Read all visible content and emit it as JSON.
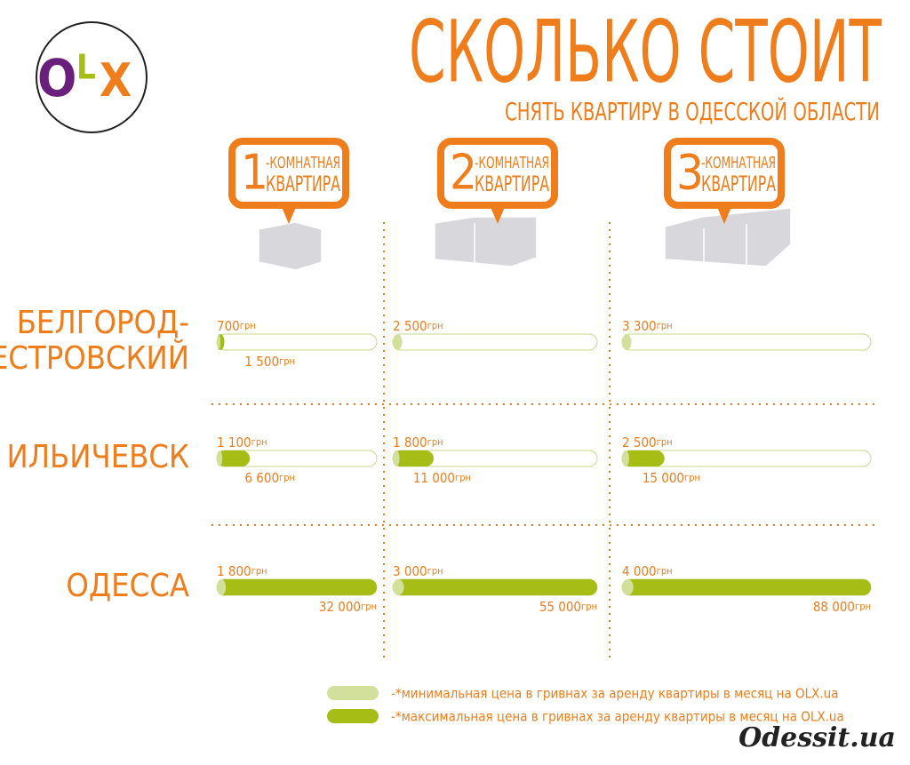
{
  "logo": {
    "o": "O",
    "l": "L",
    "x": "X"
  },
  "chart_data": {
    "type": "range-bar",
    "title": "СКОЛЬКО СТОИТ",
    "subtitle": "СНЯТЬ КВАРТИРУ В ОДЕССКОЙ ОБЛАСТИ",
    "columns": [
      {
        "number": "1",
        "line1": "-КОМНАТНАЯ",
        "line2": "КВАРТИРА"
      },
      {
        "number": "2",
        "line1": "-КОМНАТНАЯ",
        "line2": "КВАРТИРА"
      },
      {
        "number": "3",
        "line1": "-КОМНАТНАЯ",
        "line2": "КВАРТИРА"
      }
    ],
    "rows": [
      [
        "БЕЛГОРОД-",
        "ДНЕСТРОВСКИЙ"
      ],
      [
        "ИЛЬИЧЕВСК"
      ],
      [
        "ОДЕССА"
      ]
    ],
    "unit": "грн",
    "xlim": [
      [
        0,
        32000
      ],
      [
        0,
        55000
      ],
      [
        0,
        88000
      ]
    ],
    "series": [
      {
        "name": "-*минимальная цена в гривнах за аренду квартиры в месяц на OLX.ua",
        "color": "#d3e09c",
        "values": [
          [
            700,
            2500,
            3300
          ],
          [
            1100,
            1800,
            2500
          ],
          [
            1800,
            3000,
            4000
          ]
        ],
        "value_labels": [
          [
            "700",
            "2 500",
            "3 300"
          ],
          [
            "1 100",
            "1 800",
            "2 500"
          ],
          [
            "1 800",
            "3 000",
            "4 000"
          ]
        ]
      },
      {
        "name": "-*максимальная цена в гривнах за аренду квартиры в месяц на OLX.ua",
        "color": "#a5bd14",
        "values": [
          [
            1500,
            null,
            null
          ],
          [
            6600,
            11000,
            15000
          ],
          [
            32000,
            55000,
            88000
          ]
        ],
        "value_labels": [
          [
            "1 500",
            null,
            null
          ],
          [
            "6 600",
            "11 000",
            "15 000"
          ],
          [
            "32 000",
            "55 000",
            "88 000"
          ]
        ]
      }
    ]
  },
  "watermark": "Odessit.ua"
}
